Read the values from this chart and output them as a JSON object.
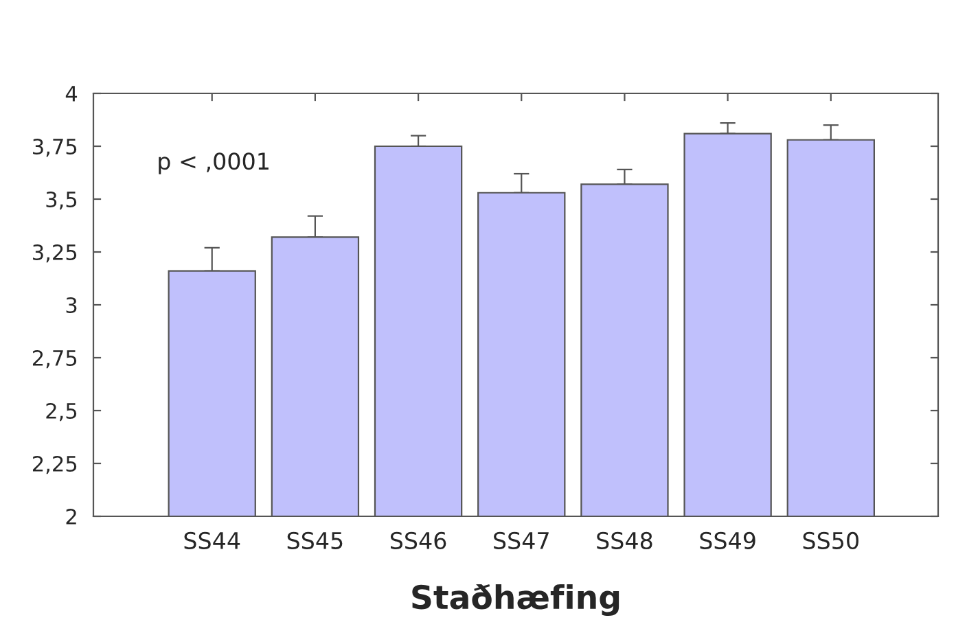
{
  "chart_data": {
    "type": "bar",
    "xlabel": "Staðhæfing",
    "categories": [
      "SS44",
      "SS45",
      "SS46",
      "SS47",
      "SS48",
      "SS49",
      "SS50"
    ],
    "values": [
      3.16,
      3.32,
      3.75,
      3.53,
      3.57,
      3.81,
      3.78
    ],
    "errors": [
      [
        3.16,
        3.27
      ],
      [
        3.32,
        3.42
      ],
      [
        3.75,
        3.8
      ],
      [
        3.53,
        3.62
      ],
      [
        3.57,
        3.64
      ],
      [
        3.81,
        3.86
      ],
      [
        3.78,
        3.85
      ]
    ],
    "color": "#c0c0fc",
    "ylim": [
      2,
      4
    ],
    "yticks": [
      2,
      {
        "value": 2.25,
        "label": "2,25"
      },
      {
        "value": 2.5,
        "label": "2,5"
      },
      {
        "value": 2.75,
        "label": "2,75"
      },
      3,
      {
        "value": 3.25,
        "label": "3,25"
      },
      {
        "value": 3.5,
        "label": "3,5"
      },
      {
        "value": 3.75,
        "label": "3,75"
      },
      4
    ],
    "annotations": [
      "p < ,0001"
    ],
    "grid": false,
    "legend": false
  }
}
